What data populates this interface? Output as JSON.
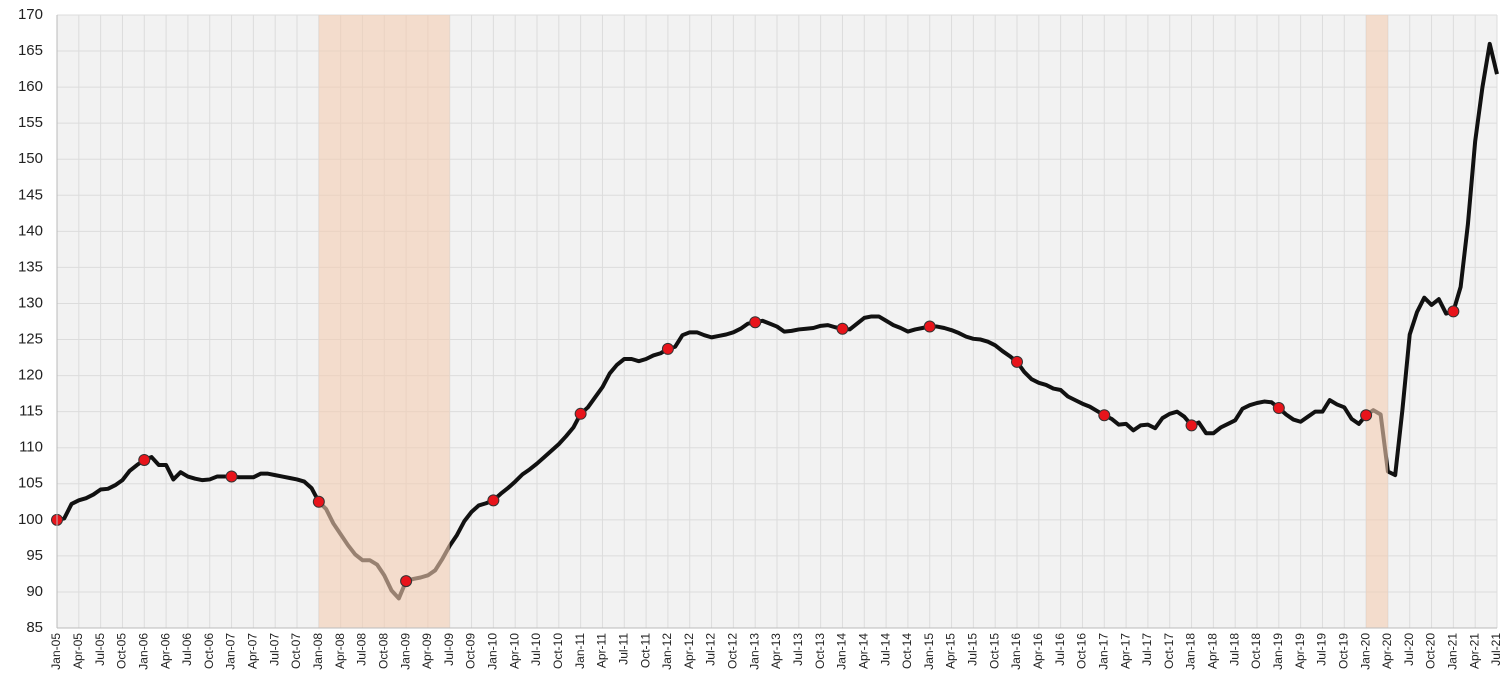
{
  "chart_data": {
    "type": "line",
    "categories": [
      "Jan-05",
      null,
      null,
      "Apr-05",
      null,
      null,
      "Jul-05",
      null,
      null,
      "Oct-05",
      null,
      null,
      "Jan-06",
      null,
      null,
      "Apr-06",
      null,
      null,
      "Jul-06",
      null,
      null,
      "Oct-06",
      null,
      null,
      "Jan-07",
      null,
      null,
      "Apr-07",
      null,
      null,
      "Jul-07",
      null,
      null,
      "Oct-07",
      null,
      null,
      "Jan-08",
      null,
      null,
      "Apr-08",
      null,
      null,
      "Jul-08",
      null,
      null,
      "Oct-08",
      null,
      null,
      "Jan-09",
      null,
      null,
      "Apr-09",
      null,
      null,
      "Jul-09",
      null,
      null,
      "Oct-09",
      null,
      null,
      "Jan-10",
      null,
      null,
      "Apr-10",
      null,
      null,
      "Jul-10",
      null,
      null,
      "Oct-10",
      null,
      null,
      "Jan-11",
      null,
      null,
      "Apr-11",
      null,
      null,
      "Jul-11",
      null,
      null,
      "Oct-11",
      null,
      null,
      "Jan-12",
      null,
      null,
      "Apr-12",
      null,
      null,
      "Jul-12",
      null,
      null,
      "Oct-12",
      null,
      null,
      "Jan-13",
      null,
      null,
      "Apr-13",
      null,
      null,
      "Jul-13",
      null,
      null,
      "Oct-13",
      null,
      null,
      "Jan-14",
      null,
      null,
      "Apr-14",
      null,
      null,
      "Jul-14",
      null,
      null,
      "Oct-14",
      null,
      null,
      "Jan-15",
      null,
      null,
      "Apr-15",
      null,
      null,
      "Jul-15",
      null,
      null,
      "Oct-15",
      null,
      null,
      "Jan-16",
      null,
      null,
      "Apr-16",
      null,
      null,
      "Jul-16",
      null,
      null,
      "Oct-16",
      null,
      null,
      "Jan-17",
      null,
      null,
      "Apr-17",
      null,
      null,
      "Jul-17",
      null,
      null,
      "Oct-17",
      null,
      null,
      "Jan-18",
      null,
      null,
      "Apr-18",
      null,
      null,
      "Jul-18",
      null,
      null,
      "Oct-18",
      null,
      null,
      "Jan-19",
      null,
      null,
      "Apr-19",
      null,
      null,
      "Jul-19",
      null,
      null,
      "Oct-19",
      null,
      null,
      "Jan-20",
      null,
      null,
      "Apr-20",
      null,
      null,
      "Jul-20",
      null,
      null,
      "Oct-20",
      null,
      null,
      "Jan-21",
      null,
      null,
      "Apr-21",
      null,
      null,
      "Jul-21"
    ],
    "series": [
      {
        "color": "#111111",
        "values": [
          100,
          100.2,
          102.2,
          102.7,
          103,
          103.5,
          104.2,
          104.3,
          104.8,
          105.5,
          106.8,
          107.6,
          108.3,
          108.7,
          107.6,
          107.6,
          105.6,
          106.6,
          106,
          105.7,
          105.5,
          105.6,
          106,
          106,
          106,
          105.9,
          105.9,
          105.9,
          106.4,
          106.4,
          106.2,
          106,
          105.8,
          105.6,
          105.3,
          104.4,
          102.5,
          101.5,
          99.5,
          98,
          96.5,
          95.2,
          94.4,
          94.4,
          93.8,
          92.3,
          90.2,
          89.1,
          91.5,
          91.8,
          92,
          92.3,
          93,
          94.6,
          96.4,
          97.9,
          99.8,
          101.1,
          102,
          102.3,
          102.7,
          103.6,
          104.4,
          105.3,
          106.3,
          107,
          107.8,
          108.7,
          109.6,
          110.5,
          111.6,
          112.8,
          114.7,
          115.6,
          117,
          118.4,
          120.3,
          121.5,
          122.3,
          122.3,
          122,
          122.3,
          122.8,
          123.1,
          123.7,
          124,
          125.6,
          126,
          126,
          125.6,
          125.3,
          125.5,
          125.7,
          126,
          126.5,
          127.2,
          127.4,
          127.6,
          127.2,
          126.8,
          126.1,
          126.2,
          126.4,
          126.5,
          126.6,
          126.9,
          127,
          126.7,
          126.5,
          126.4,
          127.2,
          128,
          128.2,
          128.2,
          127.6,
          127,
          126.6,
          126.1,
          126.4,
          126.6,
          126.8,
          126.8,
          126.6,
          126.3,
          125.9,
          125.4,
          125.1,
          125,
          124.7,
          124.2,
          123.4,
          122.7,
          121.9,
          120.5,
          119.5,
          119,
          118.7,
          118.2,
          118,
          117.1,
          116.6,
          116.1,
          115.7,
          115.1,
          114.5,
          114,
          113.2,
          113.3,
          112.4,
          113.1,
          113.2,
          112.7,
          114.1,
          114.7,
          115,
          114.3,
          113.1,
          113.5,
          112,
          112,
          112.8,
          113.3,
          113.8,
          115.4,
          115.9,
          116.2,
          116.4,
          116.3,
          115.5,
          114.6,
          113.9,
          113.6,
          114.3,
          115,
          115,
          116.6,
          116,
          115.6,
          114,
          113.3,
          114.5,
          115.2,
          114.6,
          106.7,
          106.2,
          115.3,
          125.7,
          128.8,
          130.8,
          129.8,
          130.6,
          128.6,
          128.9,
          132.3,
          141,
          152.5,
          160,
          166,
          161.8
        ]
      }
    ],
    "markers": {
      "color": "#e8141b",
      "every": 12
    },
    "shaded_ranges": [
      {
        "from": "Jan-08",
        "to": "Jul-09"
      },
      {
        "from": "Jan-20",
        "to": "Apr-20"
      }
    ],
    "shade_color": "#f4cdb3",
    "ylim": [
      85,
      170
    ],
    "yticks": [
      85,
      90,
      95,
      100,
      105,
      110,
      115,
      120,
      125,
      130,
      135,
      140,
      145,
      150,
      155,
      160,
      165,
      170
    ],
    "grid": true
  }
}
